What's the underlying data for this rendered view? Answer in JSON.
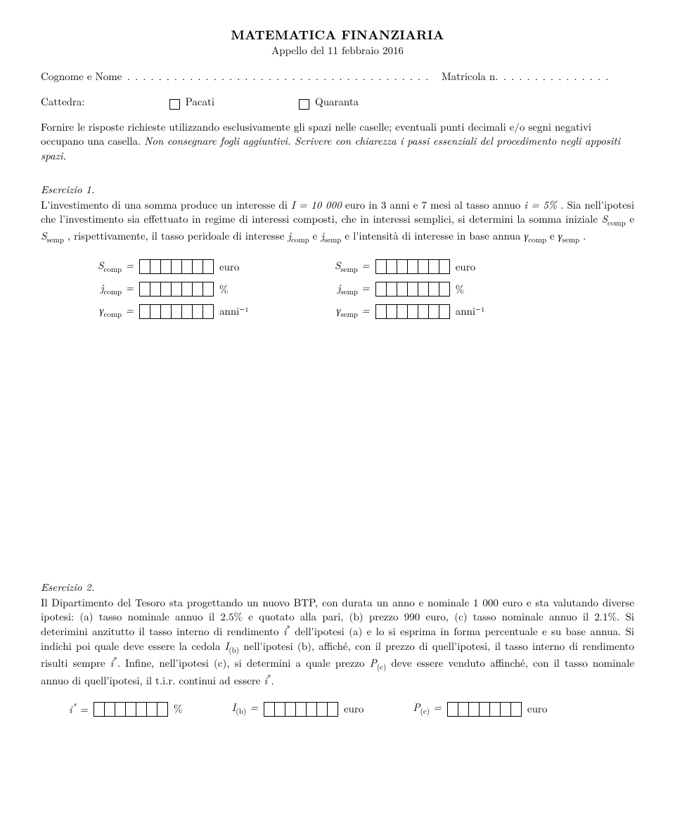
{
  "title": {
    "main": "MATEMATICA FINANZIARIA",
    "sub": "Appello del 11 febbraio 2016"
  },
  "name_line": {
    "cognome_label": "Cognome e Nome",
    "matricola_label": "Matricola n."
  },
  "cattedra": {
    "label": "Cattedra:",
    "opt1": "Pacati",
    "opt2": "Quaranta"
  },
  "instructions": {
    "p1": "Fornire le risposte richieste utilizzando esclusivamente gli spazi nelle caselle; eventuali punti decimali e/o segni negativi occupano una casella. ",
    "p2_italic": "Non consegnare fogli aggiuntivi. Scrivere con chiarezza i passi essenziali del procedimento negli appositi spazi."
  },
  "ex1": {
    "label": "Esercizio 1.",
    "text_before_I": "L'investimento di una somma produce un interesse di ",
    "I_expr": "I = 10 000",
    "text_mid1": " euro in 3 anni e 7 mesi al tasso annuo ",
    "i_expr": "i = 5%",
    "text_mid2": ". Sia nell'ipotesi che l'investimento sia effettuato in regime di interessi composti, che in interessi semplici, si determini la somma iniziale ",
    "Scomp": "S",
    "Scomp_sub": "comp",
    "and1": " e ",
    "Ssemp": "S",
    "Ssemp_sub": "semp",
    "text_mid3": ", rispettivamente, il tasso peridoale di interesse ",
    "jcomp": "j",
    "jcomp_sub": "comp",
    "and2": " e ",
    "jsemp": "j",
    "jsemp_sub": "semp",
    "text_mid4": " e l'intensità di interesse in base annua ",
    "gcomp": "γ",
    "gcomp_sub": "comp",
    "and3": " e ",
    "gsemp": "γ",
    "gsemp_sub": "semp",
    "period": "."
  },
  "ex1_answers": {
    "Scomp_label": "S",
    "Scomp_sub": "comp",
    "Scomp_unit": "euro",
    "jcomp_label": "j",
    "jcomp_sub": "comp",
    "jcomp_unit": "%",
    "gcomp_label": "γ",
    "gcomp_sub": "comp",
    "gcomp_unit": "anni⁻¹",
    "Ssemp_label": "S",
    "Ssemp_sub": "semp",
    "Ssemp_unit": "euro",
    "jsemp_label": "j",
    "jsemp_sub": "semp",
    "jsemp_unit": "%",
    "gsemp_label": "γ",
    "gsemp_sub": "semp",
    "gsemp_unit": "anni⁻¹"
  },
  "ex2": {
    "label": "Esercizio 2.",
    "text": "Il Dipartimento del Tesoro sta progettando un nuovo BTP, con durata un anno e nominale 1 000 euro e sta valutando diverse ipotesi: (a) tasso nominale annuo il 2.5% e quotato alla pari, (b) prezzo 990 euro, (c) tasso nominale annuo il 2.1%. Si deterimini anzitutto il tasso interno di rendimento i* dell'ipotesi (a) e lo si esprima in forma percentuale e su base annua. Si indichi poi quale deve essere la cedola I(b) nell'ipotesi (b), affiché, con il prezzo di quell'ipotesi, il tasso interno di rendimento risulti sempre i*. Infine, nell'ipotesi (c), si determini a quale prezzo P(c) deve essere venduto affinché, con il tasso nominale annuo di quell'ipotesi, il t.i.r. continui ad essere i*."
  },
  "ex2_answers": {
    "istar_label": "i*",
    "istar_unit": "%",
    "Ib_label": "I",
    "Ib_sub": "(b)",
    "Ib_unit": "euro",
    "Pc_label": "P",
    "Pc_sub": "(c)",
    "Pc_unit": "euro"
  },
  "style": {
    "box_count_7": 7,
    "text_color": "#000000",
    "bg_color": "#ffffff",
    "border_color": "#000000",
    "title_fontsize": 18,
    "body_fontsize": 15,
    "sub_fontsize": 11
  }
}
